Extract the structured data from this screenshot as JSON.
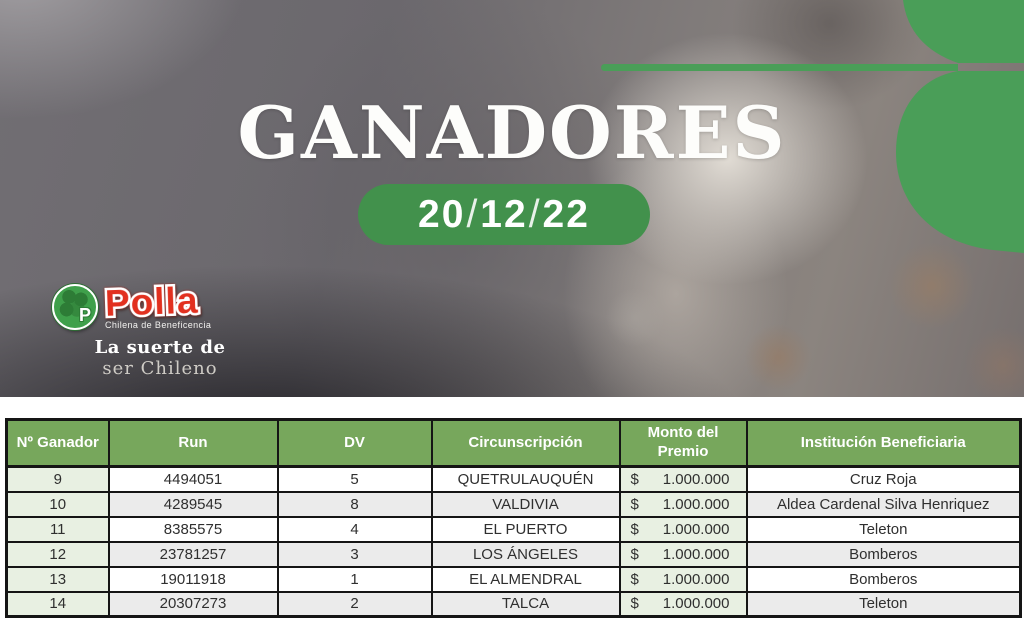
{
  "hero": {
    "title": "GANADORES",
    "date": "20/12/22",
    "logo": {
      "brand": "Polla",
      "subtitle": "Chilena de Beneficencia",
      "tagline": [
        "La suerte de",
        "ser Chileno"
      ]
    },
    "icons": {
      "clover_corner": "clover-corner-decoration",
      "logo_badge": "clover-circle-with-letter-p"
    }
  },
  "table": {
    "columns": [
      {
        "key": "numero",
        "label": "Nº Ganador"
      },
      {
        "key": "run",
        "label": "Run"
      },
      {
        "key": "dv",
        "label": "DV"
      },
      {
        "key": "circunscripcion",
        "label": "Circunscripción"
      },
      {
        "key": "monto",
        "label": "Monto del Premio"
      },
      {
        "key": "institucion",
        "label": "Institución Beneficiaria"
      }
    ],
    "rows": [
      {
        "numero": "9",
        "run": "4494051",
        "dv": "5",
        "circunscripcion": "QUETRULAUQUÉN",
        "monto": "$ 1.000.000",
        "institucion": "Cruz Roja"
      },
      {
        "numero": "10",
        "run": "4289545",
        "dv": "8",
        "circunscripcion": "VALDIVIA",
        "monto": "$ 1.000.000",
        "institucion": "Aldea Cardenal Silva Henriquez"
      },
      {
        "numero": "11",
        "run": "8385575",
        "dv": "4",
        "circunscripcion": "EL PUERTO",
        "monto": "$ 1.000.000",
        "institucion": "Teleton"
      },
      {
        "numero": "12",
        "run": "23781257",
        "dv": "3",
        "circunscripcion": "LOS ÁNGELES",
        "monto": "$ 1.000.000",
        "institucion": "Bomberos"
      },
      {
        "numero": "13",
        "run": "19011918",
        "dv": "1",
        "circunscripcion": "EL ALMENDRAL",
        "monto": "$ 1.000.000",
        "institucion": "Bomberos"
      },
      {
        "numero": "14",
        "run": "20307273",
        "dv": "2",
        "circunscripcion": "TALCA",
        "monto": "$ 1.000.000",
        "institucion": "Teleton"
      }
    ]
  },
  "colors": {
    "accent_green": "#4a9e58",
    "date_pill_green": "#42914c",
    "table_header_green": "#77a75c",
    "light_green_cell": "#e8f0e2",
    "alt_row_gray": "#ebebeb",
    "brand_red": "#e2301f"
  }
}
